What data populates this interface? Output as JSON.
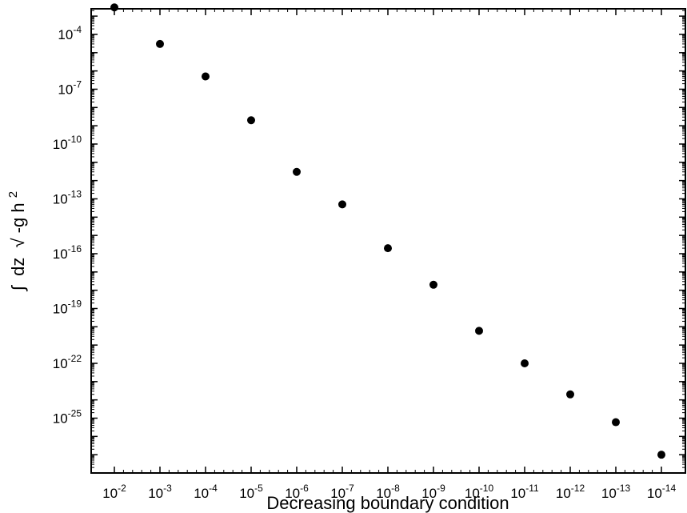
{
  "chart_data": {
    "type": "scatter",
    "xlabel": "Decreasing boundary condition",
    "ylabel": {
      "integral": "∫",
      "before_root": "dz",
      "radical": "√",
      "radicand": "-g h",
      "exponent": "2"
    },
    "x_tick_labels": [
      {
        "base": "10",
        "exp": "-2"
      },
      {
        "base": "10",
        "exp": "-3"
      },
      {
        "base": "10",
        "exp": "-4"
      },
      {
        "base": "10",
        "exp": "-5"
      },
      {
        "base": "10",
        "exp": "-6"
      },
      {
        "base": "10",
        "exp": "-7"
      },
      {
        "base": "10",
        "exp": "-8"
      },
      {
        "base": "10",
        "exp": "-9"
      },
      {
        "base": "10",
        "exp": "-10"
      },
      {
        "base": "10",
        "exp": "-11"
      },
      {
        "base": "10",
        "exp": "-12"
      },
      {
        "base": "10",
        "exp": "-13"
      },
      {
        "base": "10",
        "exp": "-14"
      }
    ],
    "y_tick_labels": [
      {
        "base": "10",
        "exp": "-4"
      },
      {
        "base": "10",
        "exp": "-7"
      },
      {
        "base": "10",
        "exp": "-10"
      },
      {
        "base": "10",
        "exp": "-13"
      },
      {
        "base": "10",
        "exp": "-16"
      },
      {
        "base": "10",
        "exp": "-19"
      },
      {
        "base": "10",
        "exp": "-22"
      },
      {
        "base": "10",
        "exp": "-25"
      }
    ],
    "y_scale": "log",
    "ylim_exponents": [
      -28,
      -2.6
    ],
    "x": [
      0.01,
      0.001,
      0.0001,
      1e-05,
      1e-06,
      1e-07,
      1e-08,
      1e-09,
      1e-10,
      1e-11,
      1e-12,
      1e-13,
      1e-14
    ],
    "y": [
      0.003,
      3e-05,
      5e-07,
      2e-09,
      3e-12,
      5e-14,
      2e-16,
      2e-18,
      6e-21,
      1e-22,
      2e-24,
      6e-26,
      1e-27
    ],
    "marker_color": "#000000"
  }
}
